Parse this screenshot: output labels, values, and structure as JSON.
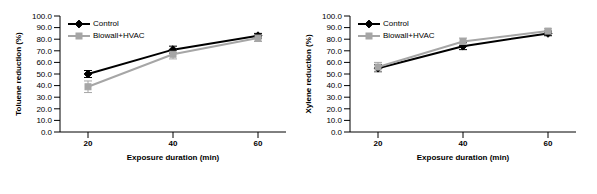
{
  "chart_data": [
    {
      "type": "line",
      "x_label": "Exposure duration (min)",
      "y_label": "Toluene reduction (%)",
      "categories": [
        "20",
        "40",
        "60"
      ],
      "series": [
        {
          "name": "Control",
          "color": "#000000",
          "marker": "diamond",
          "values": [
            50,
            71,
            83
          ],
          "errors": [
            3,
            3,
            2
          ]
        },
        {
          "name": "Biowall+HVAC",
          "color": "#a6a6a6",
          "marker": "square",
          "values": [
            39,
            67,
            81
          ],
          "errors": [
            5,
            4,
            3
          ]
        }
      ],
      "ylim": [
        0,
        100
      ],
      "yticks": [
        {
          "value": 0,
          "label": "0.0"
        },
        {
          "value": 10,
          "label": "10.0"
        },
        {
          "value": 20,
          "label": "20.0"
        },
        {
          "value": 30,
          "label": "30.0"
        },
        {
          "value": 40,
          "label": "40.0"
        },
        {
          "value": 50,
          "label": "50.0"
        },
        {
          "value": 60,
          "label": "60.0"
        },
        {
          "value": 70,
          "label": "70.0"
        },
        {
          "value": 80,
          "label": "80.0"
        },
        {
          "value": 90,
          "label": "90.0"
        },
        {
          "value": 100,
          "label": "100.0"
        }
      ],
      "legend": "upper left",
      "grid": false
    },
    {
      "type": "line",
      "x_label": "Exposure duration (min)",
      "y_label": "Xylene reduction (%)",
      "categories": [
        "20",
        "40",
        "60"
      ],
      "series": [
        {
          "name": "Control",
          "color": "#000000",
          "marker": "diamond",
          "values": [
            55,
            74,
            85
          ],
          "errors": [
            3,
            3,
            2
          ]
        },
        {
          "name": "Biowall+HVAC",
          "color": "#a6a6a6",
          "marker": "square",
          "values": [
            56,
            78,
            87
          ],
          "errors": [
            4,
            3,
            2
          ]
        }
      ],
      "ylim": [
        0,
        100
      ],
      "yticks": [
        {
          "value": 0,
          "label": "0.0"
        },
        {
          "value": 10,
          "label": "10.0"
        },
        {
          "value": 20,
          "label": "20.0"
        },
        {
          "value": 30,
          "label": "30.0"
        },
        {
          "value": 40,
          "label": "40.0"
        },
        {
          "value": 50,
          "label": "50.0"
        },
        {
          "value": 60,
          "label": "60.0"
        },
        {
          "value": 70,
          "label": "70.0"
        },
        {
          "value": 80,
          "label": "80.0"
        },
        {
          "value": 90,
          "label": "90.0"
        },
        {
          "value": 100,
          "label": "100.0"
        }
      ],
      "legend": "upper left",
      "grid": false
    }
  ]
}
